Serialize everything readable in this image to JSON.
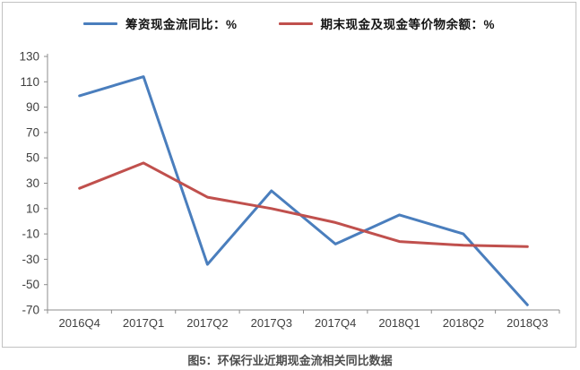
{
  "figure": {
    "caption": "图5：环保行业近期现金流相关同比数据"
  },
  "chart_data": {
    "type": "line",
    "title": "",
    "xlabel": "",
    "ylabel": "",
    "categories": [
      "2016Q4",
      "2017Q1",
      "2017Q2",
      "2017Q3",
      "2017Q4",
      "2018Q1",
      "2018Q2",
      "2018Q3"
    ],
    "series": [
      {
        "name": "筹资现金流同比：%",
        "color": "#4A7EBD",
        "values": [
          99,
          114,
          -34,
          24,
          -18,
          5,
          -10,
          -66
        ]
      },
      {
        "name": "期末现金及现金等价物余额：%",
        "color": "#C0504D",
        "values": [
          26,
          46,
          19,
          10,
          -1,
          -16,
          -19,
          -20
        ]
      }
    ],
    "ylim": [
      -70,
      130
    ],
    "ytick_step": 20,
    "grid": false,
    "legend_position": "top",
    "axis_color": "#8c8c8c",
    "line_width": 3
  }
}
